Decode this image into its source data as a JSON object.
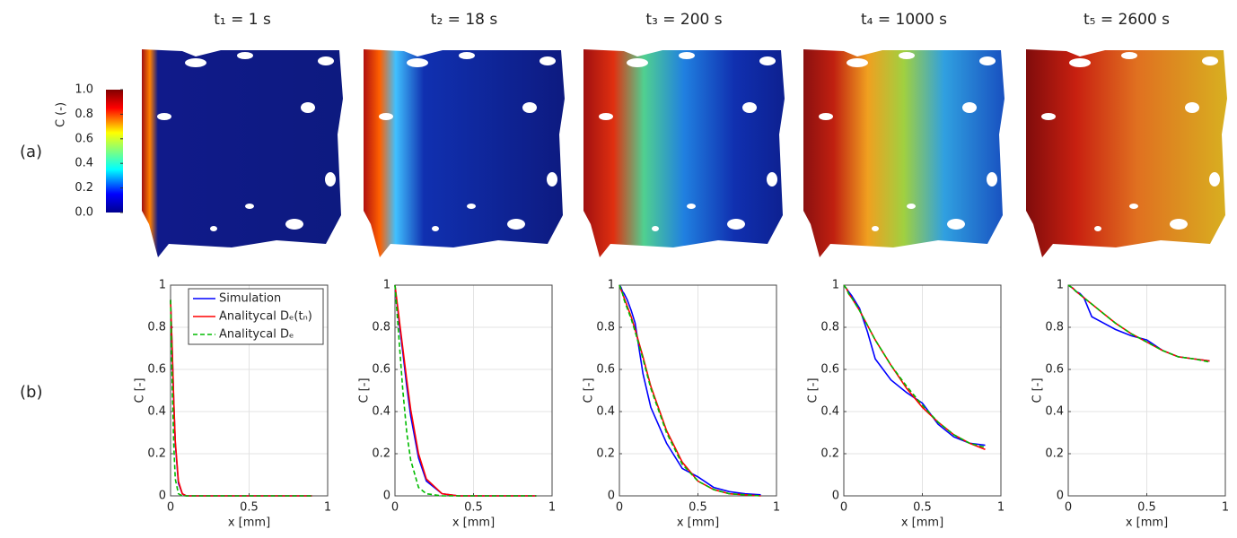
{
  "panel_labels": [
    "(a)",
    "(b)"
  ],
  "colorbar": {
    "label": "C (-)",
    "lim": [
      0,
      1
    ],
    "ticks": [
      {
        "value": 0,
        "label": "0.0"
      },
      {
        "value": 0.2,
        "label": "0.2"
      },
      {
        "value": 0.4,
        "label": "0.4"
      },
      {
        "value": 0.6,
        "label": "0.6"
      },
      {
        "value": 0.8,
        "label": "0.8"
      },
      {
        "value": 1,
        "label": "1.0"
      }
    ]
  },
  "snapshots": [
    {
      "title": "t₁ = 1 s"
    },
    {
      "title": "t₂ = 18 s"
    },
    {
      "title": "t₃ =  200 s"
    },
    {
      "title": "t₄ =  1000 s"
    },
    {
      "title": "t₅ = 2600 s"
    }
  ],
  "chart_data": [
    {
      "type": "line",
      "xlabel": "x [mm]",
      "ylabel": "C [-]",
      "xlim": [
        0,
        1
      ],
      "ylim": [
        0,
        1
      ],
      "xticks": [
        0,
        0.5,
        1
      ],
      "yticks": [
        0,
        0.2,
        0.4,
        0.6,
        0.8,
        1
      ],
      "grid": true,
      "legend": "upper right",
      "x": [
        0,
        0.01,
        0.02,
        0.03,
        0.05,
        0.075,
        0.1,
        0.15,
        0.2,
        0.3,
        0.4,
        0.5,
        0.6,
        0.7,
        0.8,
        0.9
      ],
      "series": [
        {
          "name": "Simulation",
          "color": "#0000ff",
          "dash": false,
          "values": [
            0.93,
            0.7,
            0.45,
            0.25,
            0.06,
            0.01,
            0,
            0,
            0,
            0,
            0,
            0,
            0,
            0,
            0,
            0
          ]
        },
        {
          "name": "Analitycal  Dₑ(tₙ)",
          "color": "#ff0000",
          "dash": false,
          "values": [
            0.93,
            0.71,
            0.46,
            0.26,
            0.07,
            0.01,
            0,
            0,
            0,
            0,
            0,
            0,
            0,
            0,
            0,
            0
          ]
        },
        {
          "name": "Analitycal  Dₑ",
          "color": "#00bb00",
          "dash": true,
          "values": [
            0.93,
            0.55,
            0.25,
            0.08,
            0.01,
            0,
            0,
            0,
            0,
            0,
            0,
            0,
            0,
            0,
            0,
            0
          ]
        }
      ]
    },
    {
      "type": "line",
      "xlabel": "x [mm]",
      "ylabel": "C [-]",
      "xlim": [
        0,
        1
      ],
      "ylim": [
        0,
        1
      ],
      "xticks": [
        0,
        0.5,
        1
      ],
      "yticks": [
        0,
        0.2,
        0.4,
        0.6,
        0.8,
        1
      ],
      "grid": true,
      "x": [
        0,
        0.01,
        0.02,
        0.03,
        0.05,
        0.075,
        0.1,
        0.15,
        0.2,
        0.3,
        0.4,
        0.5,
        0.6,
        0.7,
        0.8,
        0.9
      ],
      "series": [
        {
          "color": "#0000ff",
          "dash": false,
          "values": [
            1,
            0.93,
            0.87,
            0.8,
            0.68,
            0.52,
            0.38,
            0.18,
            0.07,
            0.01,
            0,
            0,
            0,
            0,
            0,
            0
          ]
        },
        {
          "color": "#ff0000",
          "dash": false,
          "values": [
            1,
            0.94,
            0.88,
            0.82,
            0.7,
            0.55,
            0.41,
            0.2,
            0.08,
            0.01,
            0,
            0,
            0,
            0,
            0,
            0
          ]
        },
        {
          "color": "#00bb00",
          "dash": true,
          "values": [
            1,
            0.9,
            0.8,
            0.7,
            0.5,
            0.3,
            0.17,
            0.04,
            0.01,
            0,
            0,
            0,
            0,
            0,
            0,
            0
          ]
        }
      ]
    },
    {
      "type": "line",
      "xlabel": "x [mm]",
      "ylabel": "C [-]",
      "xlim": [
        0,
        1
      ],
      "ylim": [
        0,
        1
      ],
      "xticks": [
        0,
        0.5,
        1
      ],
      "yticks": [
        0,
        0.2,
        0.4,
        0.6,
        0.8,
        1
      ],
      "grid": true,
      "x": [
        0,
        0.01,
        0.02,
        0.03,
        0.05,
        0.075,
        0.1,
        0.15,
        0.2,
        0.3,
        0.4,
        0.5,
        0.6,
        0.7,
        0.8,
        0.9
      ],
      "series": [
        {
          "color": "#0000ff",
          "dash": false,
          "values": [
            1,
            0.99,
            0.97,
            0.96,
            0.93,
            0.88,
            0.82,
            0.58,
            0.42,
            0.25,
            0.13,
            0.09,
            0.04,
            0.02,
            0.01,
            0.005
          ]
        },
        {
          "color": "#ff0000",
          "dash": false,
          "values": [
            1,
            0.98,
            0.96,
            0.94,
            0.9,
            0.85,
            0.79,
            0.66,
            0.52,
            0.31,
            0.16,
            0.07,
            0.03,
            0.01,
            0.005,
            0
          ]
        },
        {
          "color": "#00bb00",
          "dash": true,
          "values": [
            1,
            0.98,
            0.96,
            0.93,
            0.89,
            0.84,
            0.78,
            0.65,
            0.51,
            0.3,
            0.15,
            0.07,
            0.03,
            0.01,
            0.005,
            0
          ]
        }
      ]
    },
    {
      "type": "line",
      "xlabel": "x [mm]",
      "ylabel": "C [-]",
      "xlim": [
        0,
        1
      ],
      "ylim": [
        0,
        1
      ],
      "xticks": [
        0,
        0.5,
        1
      ],
      "yticks": [
        0,
        0.2,
        0.4,
        0.6,
        0.8,
        1
      ],
      "grid": true,
      "x": [
        0,
        0.01,
        0.02,
        0.03,
        0.05,
        0.075,
        0.1,
        0.15,
        0.2,
        0.3,
        0.4,
        0.5,
        0.6,
        0.7,
        0.8,
        0.9
      ],
      "series": [
        {
          "color": "#0000ff",
          "dash": false,
          "values": [
            1,
            0.99,
            0.98,
            0.97,
            0.95,
            0.92,
            0.89,
            0.78,
            0.65,
            0.55,
            0.49,
            0.44,
            0.34,
            0.28,
            0.25,
            0.24
          ]
        },
        {
          "color": "#ff0000",
          "dash": false,
          "values": [
            1,
            0.99,
            0.98,
            0.96,
            0.94,
            0.91,
            0.88,
            0.81,
            0.74,
            0.62,
            0.51,
            0.42,
            0.35,
            0.29,
            0.25,
            0.22
          ]
        },
        {
          "color": "#00bb00",
          "dash": true,
          "values": [
            1,
            0.99,
            0.98,
            0.96,
            0.94,
            0.91,
            0.88,
            0.81,
            0.74,
            0.62,
            0.52,
            0.43,
            0.35,
            0.29,
            0.25,
            0.23
          ]
        }
      ]
    },
    {
      "type": "line",
      "xlabel": "x [mm]",
      "ylabel": "C [-]",
      "xlim": [
        0,
        1
      ],
      "ylim": [
        0,
        1
      ],
      "xticks": [
        0,
        0.5,
        1
      ],
      "yticks": [
        0,
        0.2,
        0.4,
        0.6,
        0.8,
        1
      ],
      "grid": true,
      "x": [
        0,
        0.01,
        0.02,
        0.03,
        0.05,
        0.075,
        0.1,
        0.15,
        0.2,
        0.3,
        0.4,
        0.5,
        0.6,
        0.7,
        0.8,
        0.9
      ],
      "series": [
        {
          "color": "#0000ff",
          "dash": false,
          "values": [
            1,
            0.995,
            0.99,
            0.985,
            0.97,
            0.96,
            0.94,
            0.85,
            0.83,
            0.79,
            0.76,
            0.74,
            0.69,
            0.66,
            0.65,
            0.64
          ]
        },
        {
          "color": "#ff0000",
          "dash": false,
          "values": [
            1,
            0.995,
            0.99,
            0.985,
            0.97,
            0.955,
            0.94,
            0.91,
            0.88,
            0.82,
            0.77,
            0.73,
            0.69,
            0.66,
            0.65,
            0.64
          ]
        },
        {
          "color": "#00bb00",
          "dash": true,
          "values": [
            1,
            0.995,
            0.99,
            0.985,
            0.97,
            0.955,
            0.94,
            0.91,
            0.88,
            0.82,
            0.77,
            0.73,
            0.69,
            0.66,
            0.65,
            0.635
          ]
        }
      ]
    }
  ]
}
